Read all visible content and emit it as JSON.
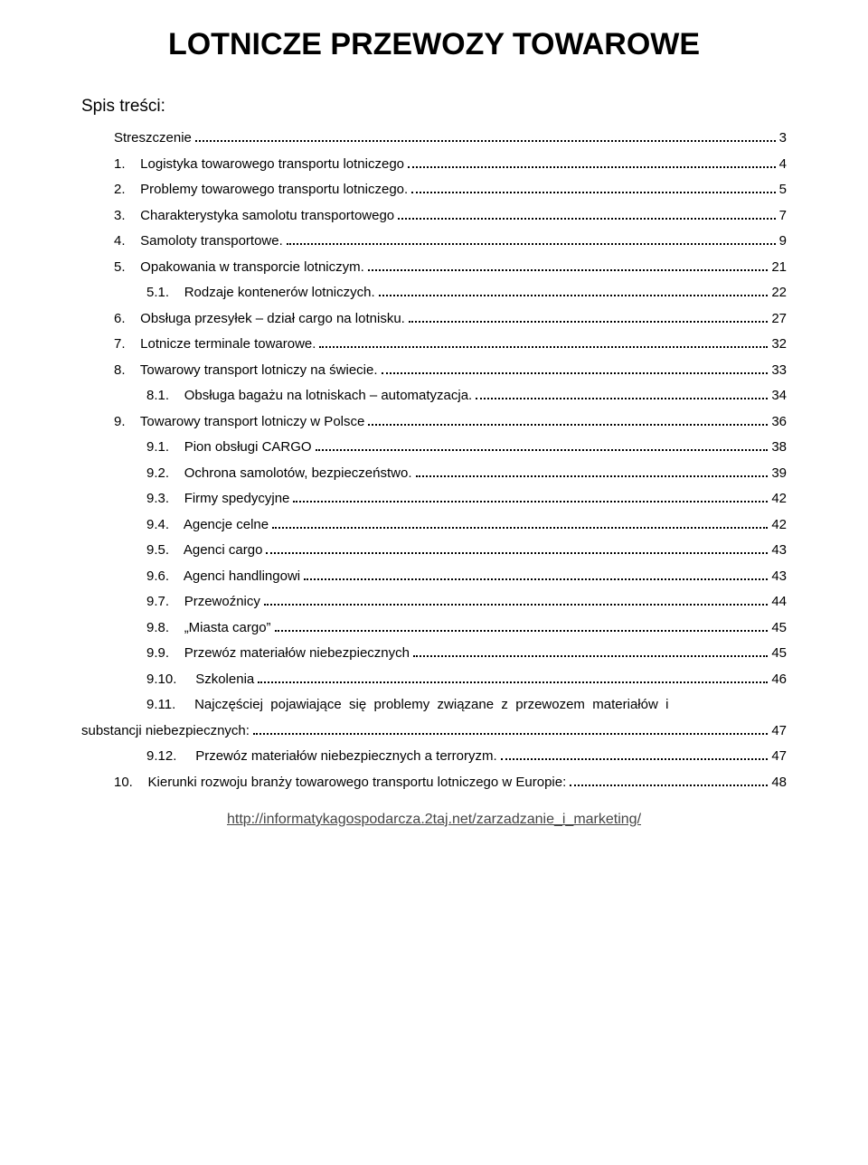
{
  "title": "LOTNICZE PRZEWOZY TOWAROWE",
  "toc_heading": "Spis treści:",
  "entries": [
    {
      "indent": 0,
      "num": "",
      "label": "Streszczenie",
      "page": "3"
    },
    {
      "indent": 0,
      "num": "1.",
      "label": "Logistyka towarowego transportu lotniczego",
      "page": "4"
    },
    {
      "indent": 0,
      "num": "2.",
      "label": "Problemy towarowego transportu lotniczego.",
      "page": "5"
    },
    {
      "indent": 0,
      "num": "3.",
      "label": "Charakterystyka samolotu transportowego",
      "page": "7"
    },
    {
      "indent": 0,
      "num": "4.",
      "label": "Samoloty transportowe.",
      "page": "9"
    },
    {
      "indent": 0,
      "num": "5.",
      "label": "Opakowania w transporcie lotniczym.",
      "page": "21"
    },
    {
      "indent": 1,
      "num": "5.1.",
      "label": "Rodzaje kontenerów lotniczych.",
      "page": "22"
    },
    {
      "indent": 0,
      "num": "6.",
      "label": "Obsługa przesyłek – dział cargo na lotnisku.",
      "page": "27"
    },
    {
      "indent": 0,
      "num": "7.",
      "label": "Lotnicze terminale towarowe.",
      "page": "32"
    },
    {
      "indent": 0,
      "num": "8.",
      "label": "Towarowy transport lotniczy na świecie.",
      "page": "33"
    },
    {
      "indent": 1,
      "num": "8.1.",
      "label": "Obsługa bagażu na lotniskach – automatyzacja.",
      "page": "34"
    },
    {
      "indent": 0,
      "num": "9.",
      "label": "Towarowy transport lotniczy w Polsce",
      "page": "36"
    },
    {
      "indent": 1,
      "num": "9.1.",
      "label": "Pion obsługi CARGO",
      "page": "38"
    },
    {
      "indent": 1,
      "num": "9.2.",
      "label": "Ochrona samolotów, bezpieczeństwo.",
      "page": "39"
    },
    {
      "indent": 1,
      "num": "9.3.",
      "label": "Firmy spedycyjne",
      "page": "42"
    },
    {
      "indent": 1,
      "num": "9.4.",
      "label": "Agencje celne",
      "page": "42"
    },
    {
      "indent": 1,
      "num": "9.5.",
      "label": "Agenci cargo",
      "page": "43"
    },
    {
      "indent": 1,
      "num": "9.6.",
      "label": "Agenci handlingowi",
      "page": "43"
    },
    {
      "indent": 1,
      "num": "9.7.",
      "label": "Przewoźnicy",
      "page": "44"
    },
    {
      "indent": 1,
      "num": "9.8.",
      "label": "„Miasta cargo”",
      "page": "45"
    },
    {
      "indent": 1,
      "num": "9.9.",
      "label": "Przewóz materiałów niebezpiecznych",
      "page": "45"
    },
    {
      "indent": 1,
      "num": "9.10.",
      "label": "Szkolenia",
      "page": "46",
      "wide": true
    },
    {
      "indent": 1,
      "num": "9.11.",
      "label": "Najczęściej  pojawiające  się  problemy  związane  z  przewozem  materiałów  i",
      "page": null,
      "wide": true,
      "wrap": true
    },
    {
      "indent": 0,
      "num": "",
      "label": "substancji niebezpiecznych:",
      "page": "47",
      "cont": true
    },
    {
      "indent": 1,
      "num": "9.12.",
      "label": "Przewóz materiałów niebezpiecznych a terroryzm.",
      "page": "47",
      "wide": true
    },
    {
      "indent": 0,
      "num": "10.",
      "label": "Kierunki rozwoju branży towarowego transportu lotniczego w Europie:",
      "page": "48"
    }
  ],
  "footer": {
    "url_text": "http://informatykagospodarcza.2taj.net/zarzadzanie_i_marketing/",
    "url_href": "http://informatykagospodarcza.2taj.net/zarzadzanie_i_marketing/"
  },
  "colors": {
    "text": "#000000",
    "background": "#ffffff",
    "link": "#464646"
  },
  "typography": {
    "title_fontsize": 34,
    "body_fontsize": 15,
    "toc_heading_fontsize": 19,
    "font_family": "Arial"
  }
}
